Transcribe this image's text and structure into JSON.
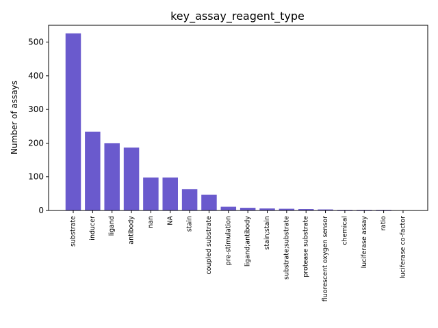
{
  "chart_data": {
    "type": "bar",
    "title": "key_assay_reagent_type",
    "xlabel": "",
    "ylabel": "Number of assays",
    "ylim": [
      0,
      550
    ],
    "yticks": [
      0,
      100,
      200,
      300,
      400,
      500
    ],
    "grid": false,
    "bar_color": "#6a5acd",
    "categories": [
      "substrate",
      "inducer",
      "ligand",
      "antibody",
      "nan",
      "NA",
      "stain",
      "coupled substrate",
      "pre-stimulation",
      "ligand;antibody",
      "stain;stain",
      "substrate;substrate",
      "protease substrate",
      "fluorescent oxygen sensor",
      "chemical",
      "luciferase assay",
      "ratio",
      "luciferase co-factor"
    ],
    "values": [
      526,
      234,
      200,
      187,
      98,
      98,
      63,
      47,
      11,
      8,
      6,
      5,
      4,
      3,
      2,
      2,
      2,
      1
    ]
  }
}
